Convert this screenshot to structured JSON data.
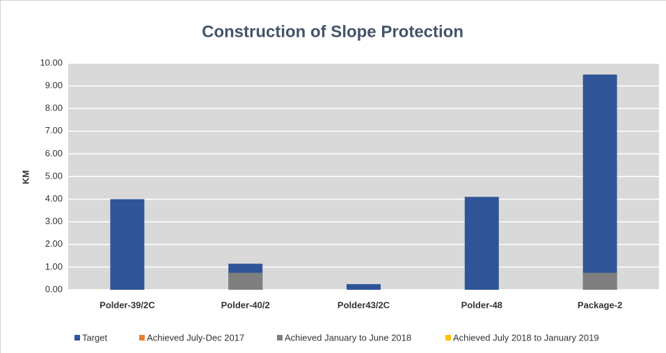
{
  "chart_data": {
    "type": "bar",
    "title": "Construction of Slope Protection",
    "y_label": "KM",
    "categories": [
      "Polder-39/2C",
      "Polder-40/2",
      "Polder43/2C",
      "Polder-48",
      "Package-2"
    ],
    "series": [
      {
        "name": "Target",
        "color": "#2f5597",
        "values": [
          4.0,
          1.15,
          0.25,
          4.1,
          9.5
        ]
      },
      {
        "name": "Achieved July-Dec 2017",
        "color": "#ed7d31",
        "values": [
          0,
          0,
          0,
          0,
          0
        ]
      },
      {
        "name": "Achieved January  to June 2018",
        "color": "#7f7f7f",
        "values": [
          0,
          0.75,
          0,
          0,
          0.75
        ]
      },
      {
        "name": "Achieved July 2018 to January 2019",
        "color": "#ffc000",
        "values": [
          0,
          0,
          0,
          0,
          0
        ]
      }
    ],
    "overlap": true,
    "ylim": [
      0,
      10
    ],
    "yticks": [
      {
        "value": 0,
        "label": "0.00"
      },
      {
        "value": 1,
        "label": "1.00"
      },
      {
        "value": 2,
        "label": "2.00"
      },
      {
        "value": 3,
        "label": "3.00"
      },
      {
        "value": 4,
        "label": "4.00"
      },
      {
        "value": 5,
        "label": "5.00"
      },
      {
        "value": 6,
        "label": "6.00"
      },
      {
        "value": 7,
        "label": "7.00"
      },
      {
        "value": 8,
        "label": "8.00"
      },
      {
        "value": 9,
        "label": "9.00"
      },
      {
        "value": 10,
        "label": "10.00"
      }
    ],
    "grid": true,
    "legend": "bottom",
    "plot_background": "#d9d9d9"
  }
}
